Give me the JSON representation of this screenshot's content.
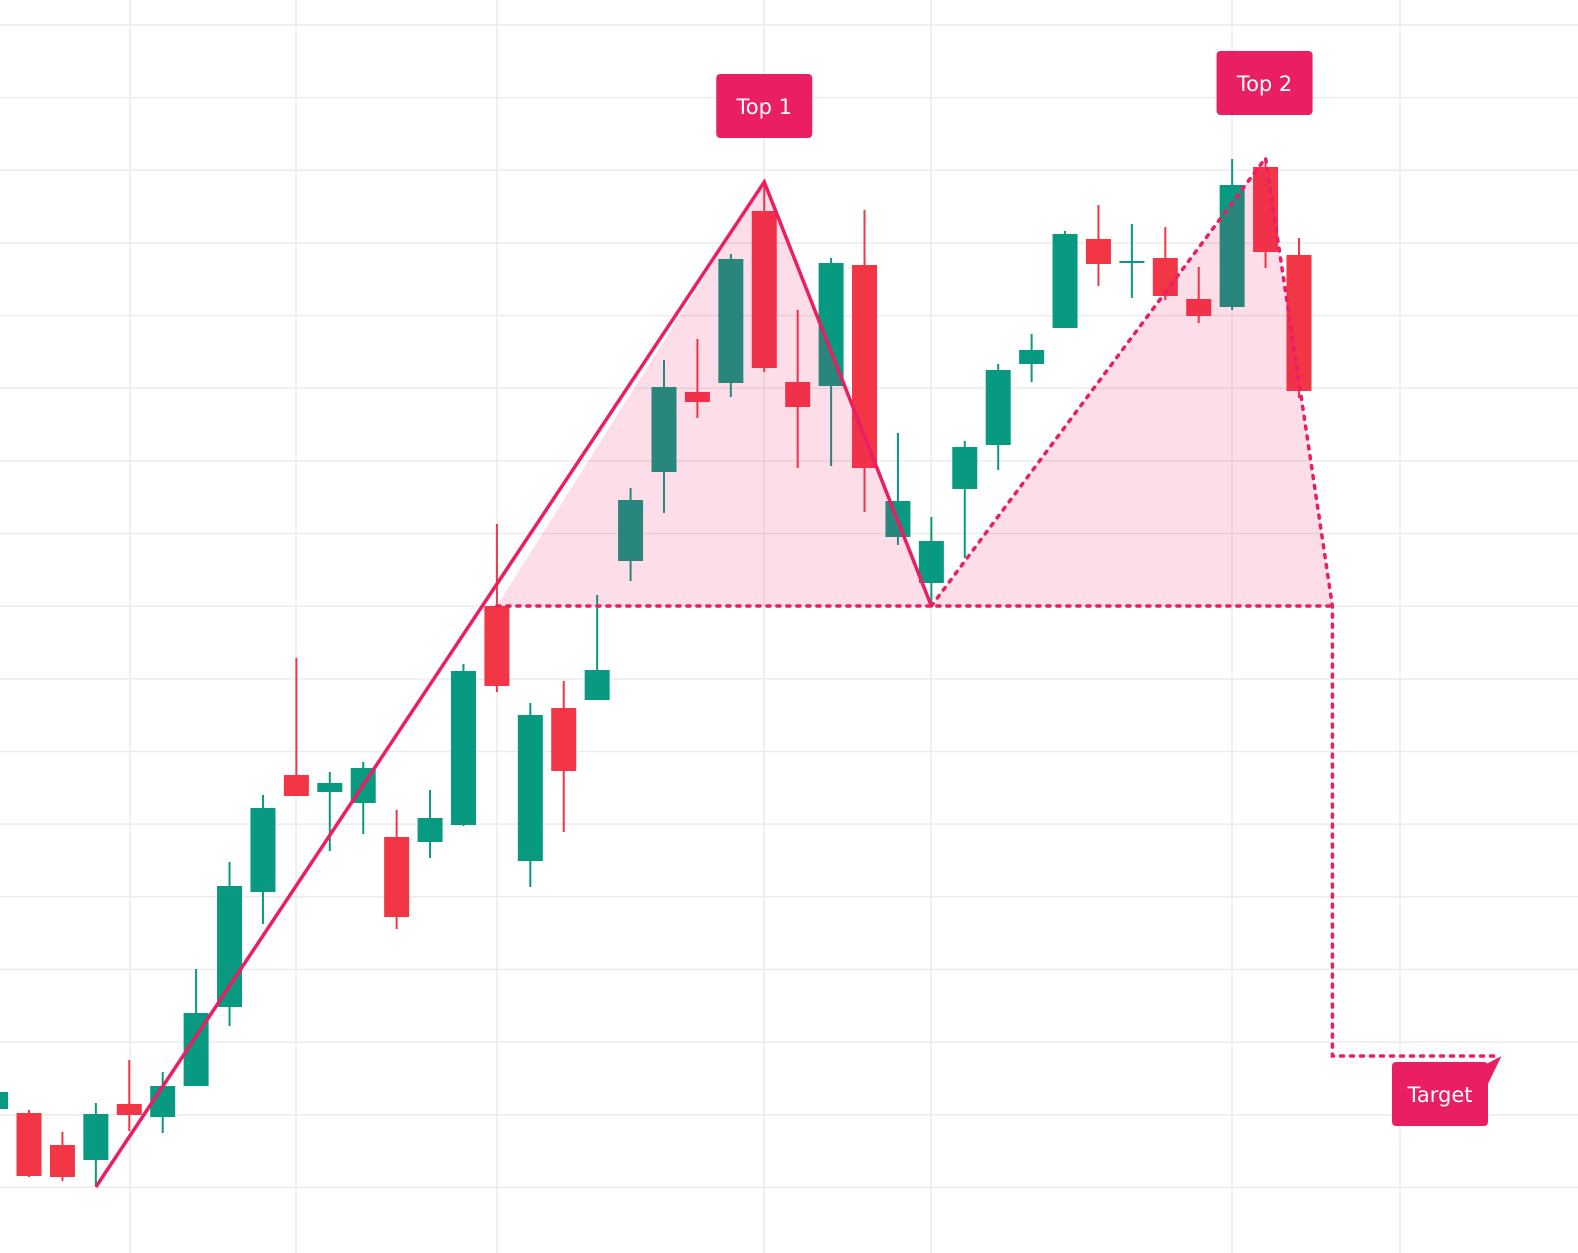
{
  "chart_data": {
    "type": "candlestick",
    "title": "",
    "xlabel": "",
    "ylabel": "",
    "grid": true,
    "colors": {
      "up": "#089981",
      "down": "#f23645",
      "pattern": "#e91e63",
      "pattern_fill": "rgba(233,30,99,0.15)",
      "grid": "#ececec"
    },
    "candles": [
      {
        "o": 14.1,
        "h": 16.0,
        "l": 14.0,
        "c": 15.8
      },
      {
        "o": 13.7,
        "h": 14.0,
        "l": 7.3,
        "c": 7.4
      },
      {
        "o": 10.5,
        "h": 11.8,
        "l": 6.9,
        "c": 7.3
      },
      {
        "o": 9.0,
        "h": 14.7,
        "l": 6.4,
        "c": 13.6
      },
      {
        "o": 14.6,
        "h": 19.0,
        "l": 11.9,
        "c": 13.5
      },
      {
        "o": 13.3,
        "h": 17.8,
        "l": 11.7,
        "c": 16.4
      },
      {
        "o": 16.4,
        "h": 28.1,
        "l": 16.4,
        "c": 23.7
      },
      {
        "o": 24.3,
        "h": 38.8,
        "l": 22.4,
        "c": 36.4
      },
      {
        "o": 35.8,
        "h": 45.5,
        "l": 32.6,
        "c": 44.2
      },
      {
        "o": 47.5,
        "h": 59.2,
        "l": 45.4,
        "c": 45.4
      },
      {
        "o": 45.8,
        "h": 47.8,
        "l": 39.9,
        "c": 46.7
      },
      {
        "o": 44.7,
        "h": 48.8,
        "l": 41.6,
        "c": 48.2
      },
      {
        "o": 41.3,
        "h": 44.0,
        "l": 32.1,
        "c": 33.3
      },
      {
        "o": 40.8,
        "h": 46.0,
        "l": 39.2,
        "c": 43.2
      },
      {
        "o": 42.5,
        "h": 58.6,
        "l": 42.4,
        "c": 57.9
      },
      {
        "o": 64.4,
        "h": 72.6,
        "l": 55.8,
        "c": 56.4
      },
      {
        "o": 38.9,
        "h": 54.7,
        "l": 36.3,
        "c": 53.5
      },
      {
        "o": 54.2,
        "h": 56.9,
        "l": 41.8,
        "c": 47.9
      },
      {
        "o": 55.0,
        "h": 65.5,
        "l": 55.0,
        "c": 58.0
      },
      {
        "o": 68.9,
        "h": 76.2,
        "l": 66.9,
        "c": 75.0
      },
      {
        "o": 77.8,
        "h": 89.0,
        "l": 73.7,
        "c": 86.3
      },
      {
        "o": 85.8,
        "h": 91.1,
        "l": 83.2,
        "c": 84.8
      },
      {
        "o": 86.7,
        "h": 99.6,
        "l": 85.3,
        "c": 99.1
      },
      {
        "o": 103.9,
        "h": 106.8,
        "l": 87.8,
        "c": 88.2
      },
      {
        "o": 86.8,
        "h": 94.0,
        "l": 78.2,
        "c": 84.3
      },
      {
        "o": 86.4,
        "h": 99.2,
        "l": 78.4,
        "c": 98.7
      },
      {
        "o": 98.5,
        "h": 104.0,
        "l": 73.8,
        "c": 78.2
      },
      {
        "o": 71.3,
        "h": 81.7,
        "l": 70.5,
        "c": 74.9
      },
      {
        "o": 66.7,
        "h": 73.3,
        "l": 64.4,
        "c": 70.9
      },
      {
        "o": 76.1,
        "h": 80.9,
        "l": 69.2,
        "c": 80.3
      },
      {
        "o": 80.5,
        "h": 88.6,
        "l": 78.0,
        "c": 88.0
      },
      {
        "o": 88.6,
        "h": 91.6,
        "l": 86.8,
        "c": 90.0
      },
      {
        "o": 92.2,
        "h": 101.9,
        "l": 92.2,
        "c": 101.6
      },
      {
        "o": 101.1,
        "h": 104.5,
        "l": 96.4,
        "c": 98.6
      },
      {
        "o": 98.7,
        "h": 102.6,
        "l": 95.2,
        "c": 98.9
      },
      {
        "o": 99.2,
        "h": 102.3,
        "l": 95.0,
        "c": 95.4
      },
      {
        "o": 95.1,
        "h": 98.3,
        "l": 92.7,
        "c": 93.4
      },
      {
        "o": 94.3,
        "h": 109.1,
        "l": 94.0,
        "c": 106.5
      },
      {
        "o": 108.3,
        "h": 109.0,
        "l": 98.2,
        "c": 99.8
      },
      {
        "o": 99.5,
        "h": 101.2,
        "l": 85.2,
        "c": 85.9
      }
    ],
    "pattern": {
      "name": "double-top",
      "start": {
        "bar": 3,
        "price": 6.3
      },
      "top1": {
        "bar": 23,
        "price": 106.8,
        "label": "Top 1"
      },
      "trough": {
        "bar": 28,
        "price": 64.4
      },
      "top2": {
        "bar": 38,
        "price": 109.2,
        "label": "Top 2"
      },
      "neckline": {
        "price": 64.4,
        "from_bar": 15,
        "to_bar": 40
      },
      "breakdown": {
        "bar": 40,
        "price": 64.4
      },
      "target": {
        "bar": 45,
        "price": 19.4,
        "label": "Target"
      }
    }
  }
}
